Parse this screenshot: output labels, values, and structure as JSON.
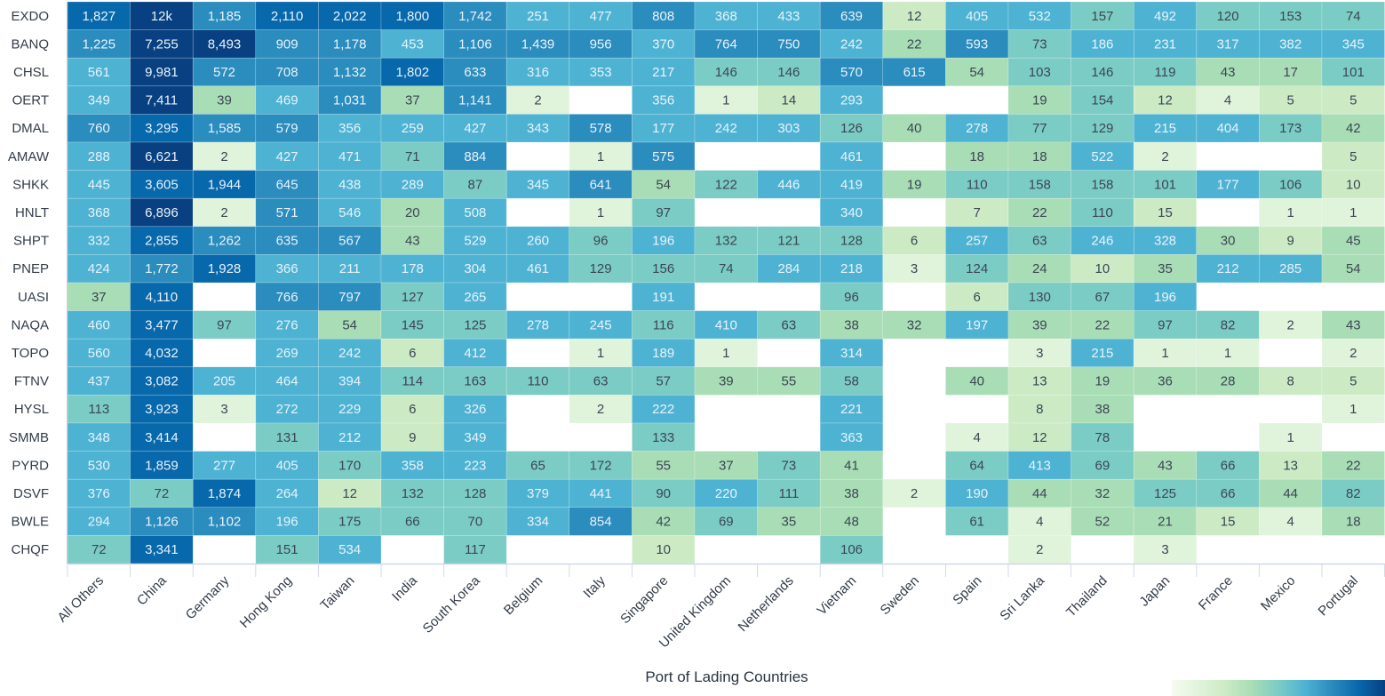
{
  "chart_data": {
    "type": "heatmap",
    "xlabel": "Port of Lading Countries",
    "ylabel": "",
    "x_categories": [
      "All Others",
      "China",
      "Germany",
      "Hong Kong",
      "Taiwan",
      "India",
      "South Korea",
      "Belgium",
      "Italy",
      "Singapore",
      "United Kingdom",
      "Netherlands",
      "Vietnam",
      "Sweden",
      "Spain",
      "Sri Lanka",
      "Thailand",
      "Japan",
      "France",
      "Mexico",
      "Portugal"
    ],
    "y_categories": [
      "EXDO",
      "BANQ",
      "CHSL",
      "OERT",
      "DMAL",
      "AMAW",
      "SHKK",
      "HNLT",
      "SHPT",
      "PNEP",
      "UASI",
      "NAQA",
      "TOPO",
      "FTNV",
      "HYSL",
      "SMMB",
      "PYRD",
      "DSVF",
      "BWLE",
      "CHQF"
    ],
    "values": [
      [
        1827,
        12000,
        1185,
        2110,
        2022,
        1800,
        1742,
        251,
        477,
        808,
        368,
        433,
        639,
        12,
        405,
        532,
        157,
        492,
        120,
        153,
        74
      ],
      [
        1225,
        7255,
        8493,
        909,
        1178,
        453,
        1106,
        1439,
        956,
        370,
        764,
        750,
        242,
        22,
        593,
        73,
        186,
        231,
        317,
        382,
        345
      ],
      [
        561,
        9981,
        572,
        708,
        1132,
        1802,
        633,
        316,
        353,
        217,
        146,
        146,
        570,
        615,
        54,
        103,
        146,
        119,
        43,
        17,
        101
      ],
      [
        349,
        7411,
        39,
        469,
        1031,
        37,
        1141,
        2,
        null,
        356,
        1,
        14,
        293,
        null,
        null,
        19,
        154,
        12,
        4,
        5,
        5
      ],
      [
        760,
        3295,
        1585,
        579,
        356,
        259,
        427,
        343,
        578,
        177,
        242,
        303,
        126,
        40,
        278,
        77,
        129,
        215,
        404,
        173,
        42
      ],
      [
        288,
        6621,
        2,
        427,
        471,
        71,
        884,
        null,
        1,
        575,
        null,
        null,
        461,
        null,
        18,
        18,
        522,
        2,
        null,
        null,
        5
      ],
      [
        445,
        3605,
        1944,
        645,
        438,
        289,
        87,
        345,
        641,
        54,
        122,
        446,
        419,
        19,
        110,
        158,
        158,
        101,
        177,
        106,
        10
      ],
      [
        368,
        6896,
        2,
        571,
        546,
        20,
        508,
        null,
        1,
        97,
        null,
        null,
        340,
        null,
        7,
        22,
        110,
        15,
        null,
        1,
        1
      ],
      [
        332,
        2855,
        1262,
        635,
        567,
        43,
        529,
        260,
        96,
        196,
        132,
        121,
        128,
        6,
        257,
        63,
        246,
        328,
        30,
        9,
        45
      ],
      [
        424,
        1772,
        1928,
        366,
        211,
        178,
        304,
        461,
        129,
        156,
        74,
        284,
        218,
        3,
        124,
        24,
        10,
        35,
        212,
        285,
        54
      ],
      [
        37,
        4110,
        null,
        766,
        797,
        127,
        265,
        null,
        null,
        191,
        null,
        null,
        96,
        null,
        6,
        130,
        67,
        196,
        null,
        null,
        null
      ],
      [
        460,
        3477,
        97,
        276,
        54,
        145,
        125,
        278,
        245,
        116,
        410,
        63,
        38,
        32,
        197,
        39,
        22,
        97,
        82,
        2,
        43
      ],
      [
        560,
        4032,
        null,
        269,
        242,
        6,
        412,
        null,
        1,
        189,
        1,
        null,
        314,
        null,
        null,
        3,
        215,
        1,
        1,
        null,
        2
      ],
      [
        437,
        3082,
        205,
        464,
        394,
        114,
        163,
        110,
        63,
        57,
        39,
        55,
        58,
        null,
        40,
        13,
        19,
        36,
        28,
        8,
        5
      ],
      [
        113,
        3923,
        3,
        272,
        229,
        6,
        326,
        null,
        2,
        222,
        null,
        null,
        221,
        null,
        null,
        8,
        38,
        null,
        null,
        null,
        1
      ],
      [
        348,
        3414,
        null,
        131,
        212,
        9,
        349,
        null,
        null,
        133,
        null,
        null,
        363,
        null,
        4,
        12,
        78,
        null,
        null,
        1,
        null
      ],
      [
        530,
        1859,
        277,
        405,
        170,
        358,
        223,
        65,
        172,
        55,
        37,
        73,
        41,
        null,
        64,
        413,
        69,
        43,
        66,
        13,
        22
      ],
      [
        376,
        72,
        1874,
        264,
        12,
        132,
        128,
        379,
        441,
        90,
        220,
        111,
        38,
        2,
        190,
        44,
        32,
        125,
        66,
        44,
        82
      ],
      [
        294,
        1126,
        1102,
        196,
        175,
        66,
        70,
        334,
        854,
        42,
        69,
        35,
        48,
        null,
        61,
        4,
        52,
        21,
        15,
        4,
        18
      ],
      [
        72,
        3341,
        null,
        151,
        534,
        null,
        117,
        null,
        null,
        10,
        null,
        null,
        106,
        null,
        null,
        2,
        null,
        3,
        null,
        null,
        null
      ]
    ],
    "labels": [
      [
        "1,827",
        "12k",
        "1,185",
        "2,110",
        "2,022",
        "1,800",
        "1,742",
        "251",
        "477",
        "808",
        "368",
        "433",
        "639",
        "12",
        "405",
        "532",
        "157",
        "492",
        "120",
        "153",
        "74"
      ],
      [
        "1,225",
        "7,255",
        "8,493",
        "909",
        "1,178",
        "453",
        "1,106",
        "1,439",
        "956",
        "370",
        "764",
        "750",
        "242",
        "22",
        "593",
        "73",
        "186",
        "231",
        "317",
        "382",
        "345"
      ],
      [
        "561",
        "9,981",
        "572",
        "708",
        "1,132",
        "1,802",
        "633",
        "316",
        "353",
        "217",
        "146",
        "146",
        "570",
        "615",
        "54",
        "103",
        "146",
        "119",
        "43",
        "17",
        "101"
      ],
      [
        "349",
        "7,411",
        "39",
        "469",
        "1,031",
        "37",
        "1,141",
        "2",
        "",
        "356",
        "1",
        "14",
        "293",
        "",
        "",
        "19",
        "154",
        "12",
        "4",
        "5",
        "5"
      ],
      [
        "760",
        "3,295",
        "1,585",
        "579",
        "356",
        "259",
        "427",
        "343",
        "578",
        "177",
        "242",
        "303",
        "126",
        "40",
        "278",
        "77",
        "129",
        "215",
        "404",
        "173",
        "42"
      ],
      [
        "288",
        "6,621",
        "2",
        "427",
        "471",
        "71",
        "884",
        "",
        "1",
        "575",
        "",
        "",
        "461",
        "",
        "18",
        "18",
        "522",
        "2",
        "",
        "",
        "5"
      ],
      [
        "445",
        "3,605",
        "1,944",
        "645",
        "438",
        "289",
        "87",
        "345",
        "641",
        "54",
        "122",
        "446",
        "419",
        "19",
        "110",
        "158",
        "158",
        "101",
        "177",
        "106",
        "10"
      ],
      [
        "368",
        "6,896",
        "2",
        "571",
        "546",
        "20",
        "508",
        "",
        "1",
        "97",
        "",
        "",
        "340",
        "",
        "7",
        "22",
        "110",
        "15",
        "",
        "1",
        "1"
      ],
      [
        "332",
        "2,855",
        "1,262",
        "635",
        "567",
        "43",
        "529",
        "260",
        "96",
        "196",
        "132",
        "121",
        "128",
        "6",
        "257",
        "63",
        "246",
        "328",
        "30",
        "9",
        "45"
      ],
      [
        "424",
        "1,772",
        "1,928",
        "366",
        "211",
        "178",
        "304",
        "461",
        "129",
        "156",
        "74",
        "284",
        "218",
        "3",
        "124",
        "24",
        "10",
        "35",
        "212",
        "285",
        "54"
      ],
      [
        "37",
        "4,110",
        "",
        "766",
        "797",
        "127",
        "265",
        "",
        "",
        "191",
        "",
        "",
        "96",
        "",
        "6",
        "130",
        "67",
        "196",
        "",
        "",
        ""
      ],
      [
        "460",
        "3,477",
        "97",
        "276",
        "54",
        "145",
        "125",
        "278",
        "245",
        "116",
        "410",
        "63",
        "38",
        "32",
        "197",
        "39",
        "22",
        "97",
        "82",
        "2",
        "43"
      ],
      [
        "560",
        "4,032",
        "",
        "269",
        "242",
        "6",
        "412",
        "",
        "1",
        "189",
        "1",
        "",
        "314",
        "",
        "",
        "3",
        "215",
        "1",
        "1",
        "",
        "2"
      ],
      [
        "437",
        "3,082",
        "205",
        "464",
        "394",
        "114",
        "163",
        "110",
        "63",
        "57",
        "39",
        "55",
        "58",
        "",
        "40",
        "13",
        "19",
        "36",
        "28",
        "8",
        "5"
      ],
      [
        "113",
        "3,923",
        "3",
        "272",
        "229",
        "6",
        "326",
        "",
        "2",
        "222",
        "",
        "",
        "221",
        "",
        "",
        "8",
        "38",
        "",
        "",
        "",
        "1"
      ],
      [
        "348",
        "3,414",
        "",
        "131",
        "212",
        "9",
        "349",
        "",
        "",
        "133",
        "",
        "",
        "363",
        "",
        "4",
        "12",
        "78",
        "",
        "",
        "1",
        ""
      ],
      [
        "530",
        "1,859",
        "277",
        "405",
        "170",
        "358",
        "223",
        "65",
        "172",
        "55",
        "37",
        "73",
        "41",
        "",
        "64",
        "413",
        "69",
        "43",
        "66",
        "13",
        "22"
      ],
      [
        "376",
        "72",
        "1,874",
        "264",
        "12",
        "132",
        "128",
        "379",
        "441",
        "90",
        "220",
        "111",
        "38",
        "2",
        "190",
        "44",
        "32",
        "125",
        "66",
        "44",
        "82"
      ],
      [
        "294",
        "1,126",
        "1,102",
        "196",
        "175",
        "66",
        "70",
        "334",
        "854",
        "42",
        "69",
        "35",
        "48",
        "",
        "61",
        "4",
        "52",
        "21",
        "15",
        "4",
        "18"
      ],
      [
        "72",
        "3,341",
        "",
        "151",
        "534",
        "",
        "117",
        "",
        "",
        "10",
        "",
        "",
        "106",
        "",
        "",
        "2",
        "",
        "3",
        "",
        "",
        ""
      ]
    ],
    "color_scale": [
      "#f7fcf0",
      "#e0f3db",
      "#ccebc5",
      "#a8ddb5",
      "#7bccc4",
      "#4eb3d3",
      "#2b8cbe",
      "#0868ac",
      "#084081"
    ],
    "legend": "bottom-right",
    "grid": true
  }
}
